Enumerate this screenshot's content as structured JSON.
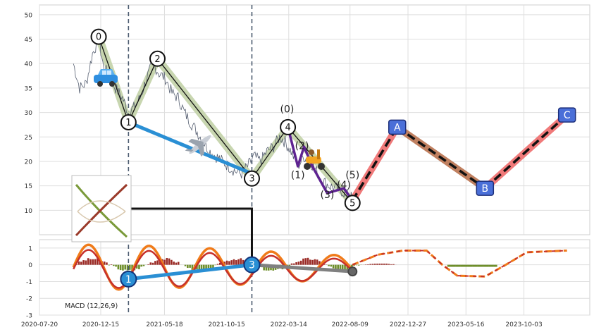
{
  "chart_data": [
    {
      "type": "line",
      "panel": "price",
      "x_ticks": [
        "2020-07-20",
        "2020-12-15",
        "2021-05-18",
        "2021-10-15",
        "2022-03-14",
        "2022-08-09",
        "2022-12-27",
        "2023-05-16",
        "2023-10-03"
      ],
      "ylim": [
        5,
        52
      ],
      "y_ticks": [
        10,
        15,
        20,
        25,
        30,
        35,
        40,
        45,
        50
      ],
      "grid": true,
      "price_series": {
        "x": [
          "2020-10-10",
          "2020-10-25",
          "2020-11-10",
          "2020-11-25",
          "2020-12-10",
          "2020-12-20",
          "2021-01-05",
          "2021-01-20",
          "2021-02-05",
          "2021-02-20",
          "2021-03-05",
          "2021-03-20",
          "2021-04-05",
          "2021-04-20",
          "2021-05-05",
          "2021-05-20",
          "2021-06-05",
          "2021-06-20",
          "2021-07-05",
          "2021-07-20",
          "2021-08-05",
          "2021-08-20",
          "2021-09-05",
          "2021-09-20",
          "2021-10-05",
          "2021-10-20",
          "2021-11-05",
          "2021-11-20",
          "2021-12-05",
          "2021-12-20",
          "2022-01-05",
          "2022-01-20",
          "2022-02-05",
          "2022-02-20",
          "2022-03-05",
          "2022-03-20",
          "2022-04-05",
          "2022-04-20",
          "2022-05-05",
          "2022-05-20",
          "2022-06-05",
          "2022-06-20",
          "2022-07-05",
          "2022-07-20",
          "2022-08-05",
          "2022-08-15"
        ],
        "y": [
          40,
          35,
          36,
          42,
          45,
          40,
          37,
          35,
          33,
          30,
          31,
          33,
          37,
          40,
          38,
          37,
          34,
          33,
          30,
          28,
          26,
          24,
          22,
          21,
          20,
          19,
          18,
          17.5,
          19,
          21,
          20,
          22,
          23,
          25,
          24,
          22,
          19,
          21,
          20,
          18,
          16,
          15,
          14.5,
          14,
          13,
          12.5
        ]
      },
      "wave_points": [
        {
          "label": "0",
          "x": "2020-12-10",
          "y": 45.5
        },
        {
          "label": "1",
          "x": "2021-02-20",
          "y": 28
        },
        {
          "label": "2",
          "x": "2021-05-01",
          "y": 41
        },
        {
          "label": "3",
          "x": "2021-12-15",
          "y": 16.5
        },
        {
          "label": "4",
          "x": "2022-03-12",
          "y": 27
        },
        {
          "label": "5",
          "x": "2022-08-15",
          "y": 11.5
        }
      ],
      "sub_wave_labels": [
        {
          "label": "(0)",
          "x": "2022-03-10",
          "y": 30
        },
        {
          "label": "(1)",
          "x": "2022-04-05",
          "y": 16.5
        },
        {
          "label": "(2)",
          "x": "2022-04-15",
          "y": 22.5
        },
        {
          "label": "(3)",
          "x": "2022-06-15",
          "y": 12.5
        },
        {
          "label": "(4)",
          "x": "2022-07-25",
          "y": 14.5
        },
        {
          "label": "(5)",
          "x": "2022-08-15",
          "y": 16.5
        }
      ],
      "sub_wave_path": {
        "x": [
          "2022-03-12",
          "2022-04-05",
          "2022-04-20",
          "2022-05-10",
          "2022-06-15",
          "2022-07-25",
          "2022-08-15"
        ],
        "y": [
          27,
          19,
          23,
          19,
          13.5,
          14.5,
          12
        ]
      },
      "trend_line": {
        "x": [
          "2021-02-20",
          "2021-12-15"
        ],
        "y": [
          28,
          17.5
        ],
        "color": "#2a8fd4"
      },
      "forecast": [
        {
          "label": "A",
          "x": "2022-12-01",
          "y": 27
        },
        {
          "label": "B",
          "x": "2023-07-01",
          "y": 14.5
        },
        {
          "label": "C",
          "x": "2024-01-15",
          "y": 29.5
        }
      ],
      "forecast_start": {
        "x": "2022-08-15",
        "y": 12
      },
      "vlines": [
        "2021-02-20",
        "2021-12-15"
      ],
      "colors": {
        "price": "#555e70",
        "waves": "#c8d6b0",
        "sub_waves": "#5e2391",
        "trend": "#2a8fd4",
        "forecast_up": "#f07a7a",
        "forecast_down": "#c08060"
      }
    },
    {
      "type": "line",
      "panel": "macd",
      "label": "MACD (12,26,9)",
      "ylim": [
        -3,
        1.5
      ],
      "y_ticks": [
        -3,
        -2,
        -1,
        0,
        1
      ],
      "grid": true,
      "macd_points": [
        {
          "label": "1",
          "x": "2021-02-20",
          "y": -0.85
        },
        {
          "label": "3",
          "x": "2021-12-15",
          "y": 0
        }
      ],
      "macd_end_point": {
        "x": "2022-08-15",
        "y": -0.4
      },
      "colors": {
        "macd": "#f07b1a",
        "signal": "#c6302b",
        "hist_pos": "#9a2a25",
        "hist_neg": "#6e8e2a",
        "link": "#2a8fd4",
        "grey": "#808080"
      }
    }
  ]
}
